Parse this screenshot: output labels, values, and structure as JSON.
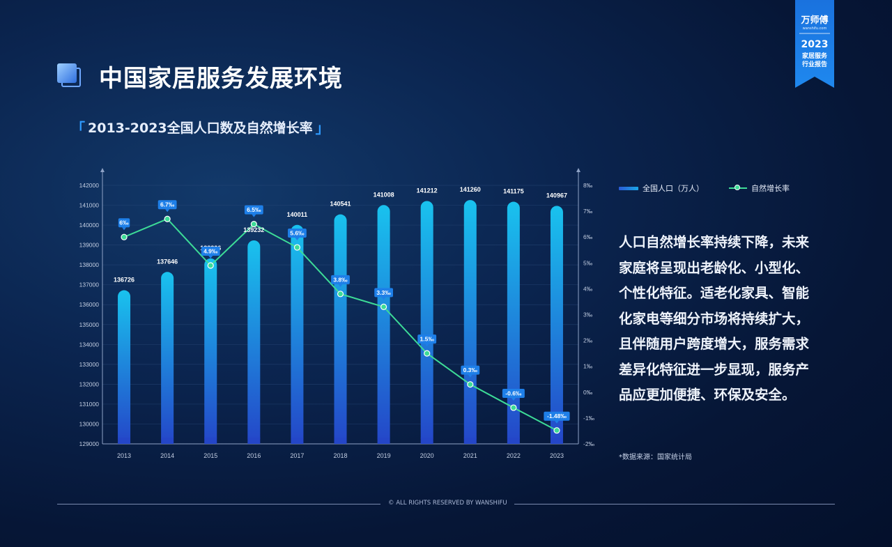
{
  "page": {
    "title": "中国家居服务发展环境",
    "subtitle": "2013-2023全国人口数及自然增长率",
    "bracket_open": "「",
    "bracket_close": "」"
  },
  "badge": {
    "brand": "万师傅",
    "url": "wanshifu.com",
    "year": "2023",
    "line1": "家居服务",
    "line2": "行业报告",
    "color": "#1f7fe6"
  },
  "legend": {
    "population": "全国人口（万人）",
    "rate": "自然增长率"
  },
  "description": "人口自然增长率持续下降，未来家庭将呈现出老龄化、小型化、个性化特征。适老化家具、智能化家电等细分市场将持续扩大，且伴随用户跨度增大，服务需求差异化特征进一步显现，服务产品应更加便捷、环保及安全。",
  "source": "*数据来源：国家统计局",
  "footer": "© ALL RIGHTS RESERVED BY WANSHIFU",
  "chart_data": {
    "type": "bar",
    "categories": [
      "2013",
      "2014",
      "2015",
      "2016",
      "2017",
      "2018",
      "2019",
      "2020",
      "2021",
      "2022",
      "2023"
    ],
    "series": [
      {
        "name": "全国人口（万人）",
        "type": "bar",
        "axis": "left",
        "values": [
          136726,
          137646,
          138326,
          139232,
          140011,
          140541,
          141008,
          141212,
          141260,
          141175,
          140967
        ]
      },
      {
        "name": "自然增长率",
        "type": "line",
        "axis": "right",
        "values": [
          6,
          6.7,
          4.9,
          6.5,
          5.6,
          3.8,
          3.3,
          1.5,
          0.3,
          -0.6,
          -1.48
        ]
      }
    ],
    "rate_labels": [
      "6‰",
      "6.7‰",
      "4.9‰",
      "6.5‰",
      "5.6‰",
      "3.8‰",
      "3.3‰",
      "1.5‰",
      "0.3‰",
      "-0.6‰",
      "-1.48‰"
    ],
    "y_left": {
      "min": 129000,
      "max": 142000,
      "step": 1000
    },
    "y_right": {
      "min": -2,
      "max": 8,
      "step": 1,
      "suffix": "‰"
    },
    "grid": true,
    "colors": {
      "bar_top": "#19c2ee",
      "bar_bottom": "#2446c8",
      "line": "#3ddc97",
      "label_bg": "#1e7fe8"
    }
  }
}
